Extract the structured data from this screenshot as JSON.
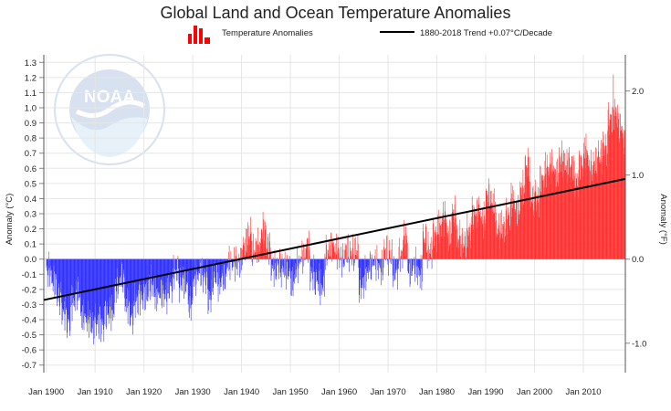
{
  "chart_data": {
    "type": "bar",
    "title": "Global Land and Ocean Temperature Anomalies",
    "ylabel": "Anomaly (°C)",
    "y2label": "Anomaly (°F)",
    "ylim": [
      -0.75,
      1.35
    ],
    "y2lim": [
      -1.35,
      2.43
    ],
    "xlim": [
      1899.5,
      2018.6
    ],
    "yticks": [
      -0.7,
      -0.6,
      -0.5,
      -0.4,
      -0.3,
      -0.2,
      -0.1,
      0.0,
      0.1,
      0.2,
      0.3,
      0.4,
      0.5,
      0.6,
      0.7,
      0.8,
      0.9,
      1.0,
      1.1,
      1.2,
      1.3
    ],
    "ytick_labels": [
      "-0.7",
      "-0.6",
      "-0.5",
      "-0.4",
      "-0.3",
      "-0.2",
      "-0.1",
      "0.0",
      "0.1",
      "0.2",
      "0.3",
      "0.4",
      "0.5",
      "0.6",
      "0.7",
      "0.8",
      "0.9",
      "1.0",
      "1.1",
      "1.2",
      "1.3"
    ],
    "y2ticks": [
      -1.0,
      0.0,
      1.0,
      2.0
    ],
    "y2tick_labels": [
      "-1.0",
      "0.0",
      "1.0",
      "2.0"
    ],
    "xticks": [
      1900,
      1910,
      1920,
      1930,
      1940,
      1950,
      1960,
      1970,
      1980,
      1990,
      2000,
      2010
    ],
    "xtick_labels": [
      "Jan 1900",
      "Jan 1910",
      "Jan 1920",
      "Jan 1930",
      "Jan 1940",
      "Jan 1950",
      "Jan 1960",
      "Jan 1970",
      "Jan 1980",
      "Jan 1990",
      "Jan 2000",
      "Jan 2010"
    ],
    "grid": true,
    "legend_position": "top-center",
    "series": [
      {
        "name": "Temperature Anomalies",
        "type": "bar",
        "positive_color": "#ff3333",
        "negative_color": "#3333ff",
        "annual_x": [
          1900,
          1901,
          1902,
          1903,
          1904,
          1905,
          1906,
          1907,
          1908,
          1909,
          1910,
          1911,
          1912,
          1913,
          1914,
          1915,
          1916,
          1917,
          1918,
          1919,
          1920,
          1921,
          1922,
          1923,
          1924,
          1925,
          1926,
          1927,
          1928,
          1929,
          1930,
          1931,
          1932,
          1933,
          1934,
          1935,
          1936,
          1937,
          1938,
          1939,
          1940,
          1941,
          1942,
          1943,
          1944,
          1945,
          1946,
          1947,
          1948,
          1949,
          1950,
          1951,
          1952,
          1953,
          1954,
          1955,
          1956,
          1957,
          1958,
          1959,
          1960,
          1961,
          1962,
          1963,
          1964,
          1965,
          1966,
          1967,
          1968,
          1969,
          1970,
          1971,
          1972,
          1973,
          1974,
          1975,
          1976,
          1977,
          1978,
          1979,
          1980,
          1981,
          1982,
          1983,
          1984,
          1985,
          1986,
          1987,
          1988,
          1989,
          1990,
          1991,
          1992,
          1993,
          1994,
          1995,
          1996,
          1997,
          1998,
          1999,
          2000,
          2001,
          2002,
          2003,
          2004,
          2005,
          2006,
          2007,
          2008,
          2009,
          2010,
          2011,
          2012,
          2013,
          2014,
          2015,
          2016,
          2017,
          2018
        ],
        "annual_values": [
          -0.08,
          -0.15,
          -0.25,
          -0.35,
          -0.42,
          -0.28,
          -0.22,
          -0.38,
          -0.4,
          -0.45,
          -0.42,
          -0.44,
          -0.36,
          -0.35,
          -0.18,
          -0.12,
          -0.3,
          -0.38,
          -0.28,
          -0.25,
          -0.24,
          -0.16,
          -0.24,
          -0.22,
          -0.24,
          -0.18,
          -0.08,
          -0.16,
          -0.16,
          -0.3,
          -0.12,
          -0.08,
          -0.12,
          -0.26,
          -0.12,
          -0.16,
          -0.12,
          -0.02,
          -0.02,
          -0.02,
          0.08,
          0.16,
          0.06,
          0.08,
          0.2,
          0.08,
          -0.06,
          -0.04,
          -0.06,
          -0.08,
          -0.16,
          -0.04,
          0.02,
          0.08,
          -0.1,
          -0.14,
          -0.18,
          0.04,
          0.08,
          0.06,
          0.0,
          0.06,
          0.04,
          0.06,
          -0.18,
          -0.1,
          -0.04,
          -0.02,
          -0.06,
          0.06,
          0.02,
          -0.08,
          0.02,
          0.14,
          -0.08,
          -0.04,
          -0.1,
          0.14,
          0.06,
          0.16,
          0.22,
          0.28,
          0.16,
          0.3,
          0.14,
          0.1,
          0.18,
          0.3,
          0.32,
          0.26,
          0.42,
          0.36,
          0.2,
          0.22,
          0.28,
          0.4,
          0.32,
          0.46,
          0.62,
          0.4,
          0.4,
          0.52,
          0.6,
          0.62,
          0.56,
          0.66,
          0.62,
          0.62,
          0.52,
          0.62,
          0.72,
          0.6,
          0.64,
          0.68,
          0.74,
          0.92,
          0.98,
          0.88,
          0.8
        ]
      },
      {
        "name": "1880-2018 Trend +0.07°C/Decade",
        "type": "line",
        "color": "#000000",
        "x": [
          1899.5,
          2018.6
        ],
        "values": [
          -0.27,
          0.53
        ]
      }
    ]
  },
  "watermark": {
    "logo": "noaa-logo",
    "letters": "NOAA"
  }
}
